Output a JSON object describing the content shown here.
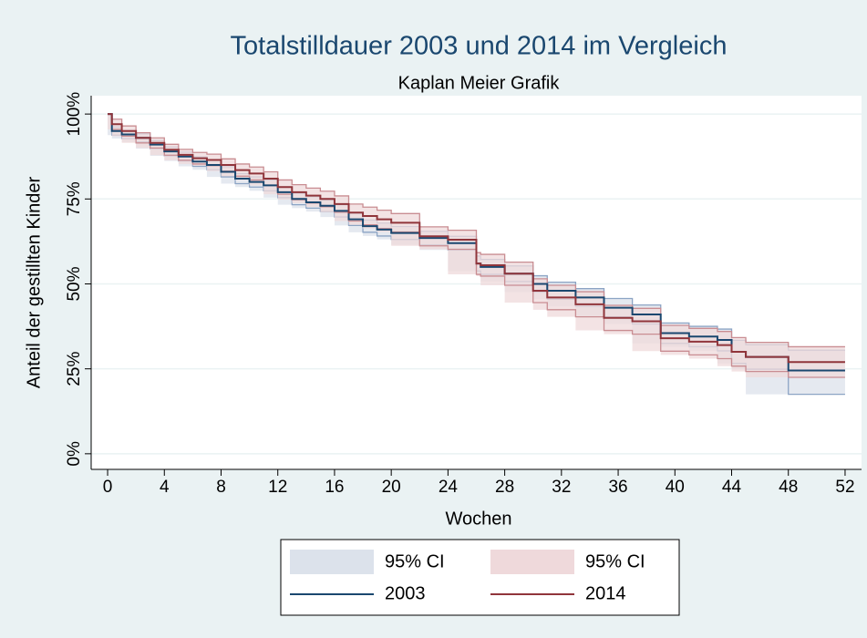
{
  "chart_data": {
    "type": "line",
    "step": true,
    "title": "Totalstilldauer 2003 und 2014 im Vergleich",
    "subtitle": "Kaplan Meier Grafik",
    "x_label": "Wochen",
    "y_label": "Anteil der gestillten Kinder",
    "x": [
      0,
      0.3,
      1,
      2,
      3,
      4,
      5,
      6,
      7,
      8,
      9,
      10,
      11,
      12,
      13,
      14,
      15,
      16,
      17,
      18,
      19,
      20,
      22,
      24,
      26,
      26.3,
      28,
      30,
      31,
      33,
      35,
      37,
      39,
      41,
      43,
      44,
      45,
      48,
      52
    ],
    "bands": [
      {
        "name": "95% CI",
        "color": "#dce2eb",
        "edge": "#8ca4c4",
        "lower": [
          100,
          93.8,
          92.8,
          91.8,
          89.8,
          87.7,
          86.2,
          84.6,
          83.6,
          81.5,
          79.5,
          78.5,
          77.4,
          75.4,
          73.3,
          72.3,
          71.3,
          69.7,
          67.2,
          65.2,
          64.1,
          63.1,
          61.5,
          60,
          53.8,
          52.8,
          50.7,
          47.6,
          45.5,
          43.4,
          40.3,
          38.2,
          32.5,
          31.5,
          30.3,
          26.6,
          24.9,
          17.5,
          17.5
        ],
        "upper": [
          100,
          96.2,
          95.2,
          94.2,
          92.2,
          90.3,
          88.8,
          87.4,
          86.4,
          84.5,
          82.5,
          81.5,
          80.6,
          78.6,
          76.7,
          75.7,
          74.7,
          73.3,
          70.8,
          68.8,
          67.9,
          66.9,
          65.5,
          64,
          58.2,
          57.2,
          55.3,
          52.4,
          50.5,
          48.6,
          45.7,
          43.8,
          38.5,
          37.5,
          36.7,
          33.4,
          32.1,
          30.5,
          30.5
        ]
      },
      {
        "name": "95% CI",
        "color": "#efd9db",
        "edge": "#c98d92",
        "lower": [
          100,
          95.5,
          93.5,
          91.5,
          90,
          87.9,
          86.4,
          85.3,
          84.8,
          83.2,
          81.7,
          80.6,
          79,
          76.4,
          74.8,
          73.8,
          72.7,
          71.1,
          68.5,
          67.4,
          66.3,
          65.3,
          61.2,
          60.2,
          52.8,
          52.3,
          49.6,
          44.5,
          42.4,
          40.3,
          36.3,
          35.2,
          30.2,
          29.1,
          28,
          25.8,
          24.2,
          22.5,
          22.5
        ],
        "upper": [
          100,
          98.5,
          96.5,
          94.5,
          93,
          91.1,
          89.6,
          88.7,
          88.2,
          86.8,
          85.3,
          84.4,
          83,
          80.6,
          79.2,
          78.2,
          77.3,
          75.9,
          73.5,
          72.6,
          71.7,
          70.7,
          66.8,
          65.8,
          59.2,
          58.7,
          56.4,
          51.5,
          49.6,
          47.7,
          43.7,
          42.8,
          37.8,
          36.9,
          36,
          34.2,
          32.8,
          31.5,
          31.5
        ]
      }
    ],
    "series": [
      {
        "name": "2003",
        "color": "#1a476f",
        "values": [
          100,
          95,
          94,
          93,
          91,
          89,
          87.5,
          86,
          85,
          83,
          81,
          80,
          79,
          77,
          75,
          74,
          73,
          71.5,
          69,
          67,
          66,
          65,
          63.5,
          62,
          56,
          55,
          53,
          50,
          48,
          46,
          43,
          41,
          35.5,
          34.5,
          33.5,
          30,
          28.5,
          24.5,
          24.5
        ]
      },
      {
        "name": "2014",
        "color": "#90353b",
        "values": [
          100,
          97,
          95,
          93,
          91.5,
          89.5,
          88,
          87,
          86.5,
          85,
          83.5,
          82.5,
          81,
          78.5,
          77,
          76,
          75,
          73.5,
          71,
          70,
          69,
          68,
          64,
          63,
          56,
          55.5,
          53,
          48,
          46,
          44,
          40,
          39,
          34,
          33,
          32,
          30,
          28.5,
          27,
          27
        ]
      }
    ],
    "xlim": [
      -1.16,
      53.16
    ],
    "xticks": [
      0,
      4,
      8,
      12,
      16,
      20,
      24,
      28,
      32,
      36,
      40,
      44,
      48,
      52
    ],
    "ylim": [
      -4.6,
      105.4
    ],
    "yticks": [
      {
        "value": 0,
        "label": "0%"
      },
      {
        "value": 25,
        "label": "25%"
      },
      {
        "value": 50,
        "label": "50%"
      },
      {
        "value": 75,
        "label": "75%"
      },
      {
        "value": 100,
        "label": "100%"
      }
    ],
    "grid": true,
    "legend": "bottom"
  }
}
